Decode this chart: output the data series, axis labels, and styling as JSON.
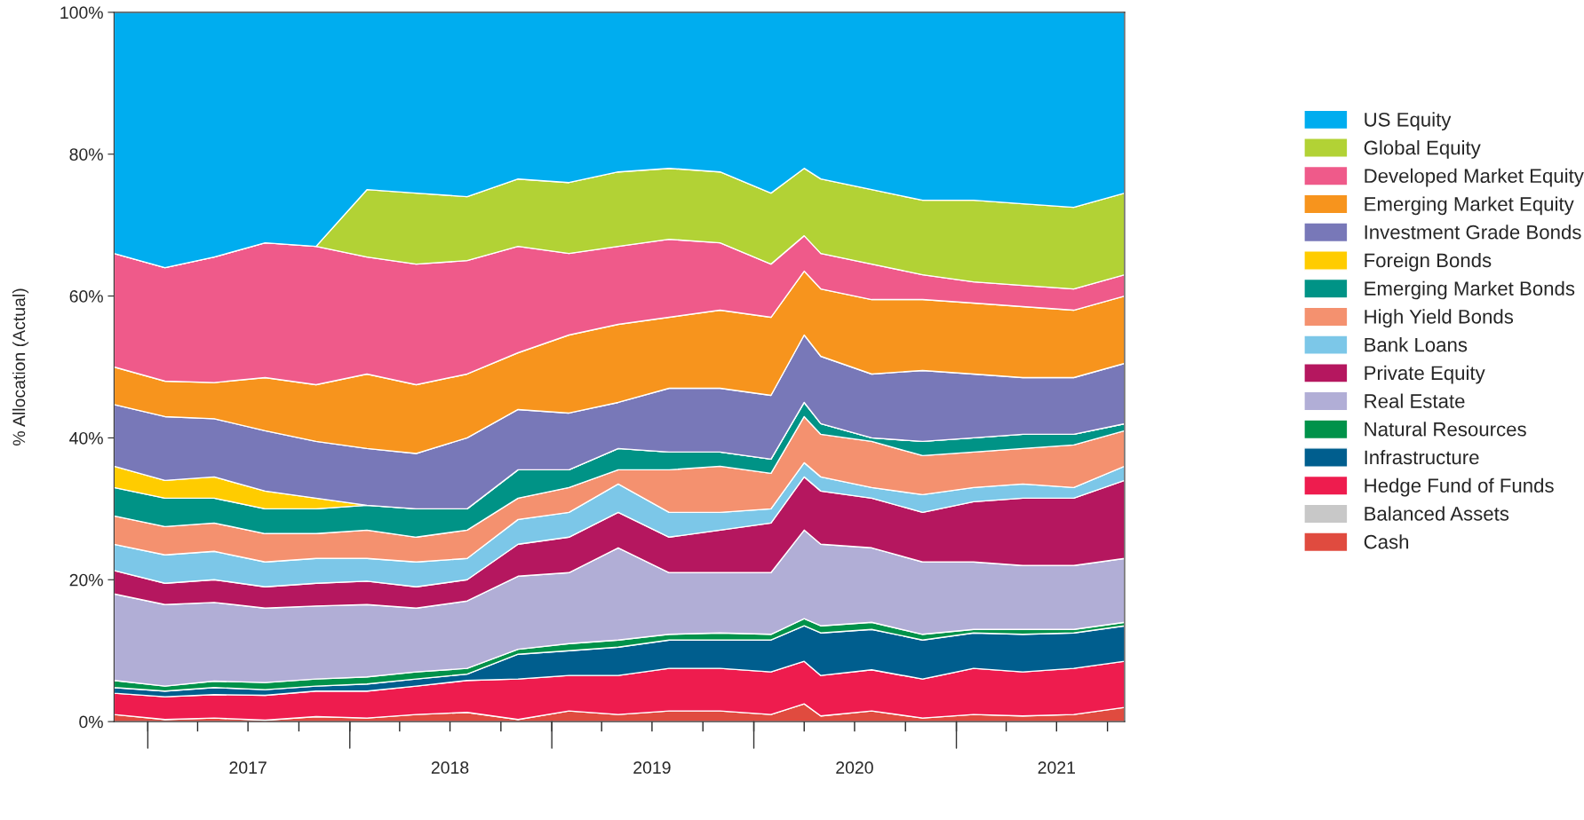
{
  "chart_data": {
    "type": "area",
    "stacked": true,
    "ylabel": "% Allocation (Actual)",
    "legend": "right",
    "x": [
      "2016-11-01",
      "2017-02-01",
      "2017-05-01",
      "2017-08-01",
      "2017-11-01",
      "2018-02-01",
      "2018-05-01",
      "2018-08-01",
      "2018-11-01",
      "2019-02-01",
      "2019-05-01",
      "2019-08-01",
      "2019-11-01",
      "2020-02-01",
      "2020-04-01",
      "2020-05-01",
      "2020-08-01",
      "2020-11-01",
      "2021-02-01",
      "2021-05-01",
      "2021-08-01",
      "2021-11-01"
    ],
    "xlim": [
      "2016-11-01",
      "2021-11-01"
    ],
    "xticks": [
      {
        "value": "2017-01-01",
        "label": null
      },
      {
        "value": "2017-04-01",
        "label": null
      },
      {
        "value": "2017-07-01",
        "label": "2017"
      },
      {
        "value": "2017-10-01",
        "label": null
      },
      {
        "value": "2018-01-01",
        "label": null
      },
      {
        "value": "2018-04-01",
        "label": null
      },
      {
        "value": "2018-07-01",
        "label": "2018"
      },
      {
        "value": "2018-10-01",
        "label": null
      },
      {
        "value": "2019-01-01",
        "label": null
      },
      {
        "value": "2019-04-01",
        "label": null
      },
      {
        "value": "2019-07-01",
        "label": "2019"
      },
      {
        "value": "2019-10-01",
        "label": null
      },
      {
        "value": "2020-01-01",
        "label": null
      },
      {
        "value": "2020-04-01",
        "label": null
      },
      {
        "value": "2020-07-01",
        "label": "2020"
      },
      {
        "value": "2020-10-01",
        "label": null
      },
      {
        "value": "2021-01-01",
        "label": null
      },
      {
        "value": "2021-04-01",
        "label": null
      },
      {
        "value": "2021-07-01",
        "label": "2021"
      },
      {
        "value": "2021-10-01",
        "label": null
      }
    ],
    "ylim": [
      0,
      100
    ],
    "yticks": [
      {
        "value": 0,
        "label": "0%"
      },
      {
        "value": 20,
        "label": "20%"
      },
      {
        "value": 40,
        "label": "40%"
      },
      {
        "value": 60,
        "label": "60%"
      },
      {
        "value": 80,
        "label": "80%"
      },
      {
        "value": 100,
        "label": "100%"
      }
    ],
    "series": [
      {
        "name": "Cash",
        "color": "#e04b3f",
        "values": [
          1,
          0.3,
          0.5,
          0.2,
          0.7,
          0.5,
          1,
          1.3,
          0.3,
          1.5,
          1,
          1.5,
          1.5,
          1,
          2.5,
          0.8,
          1.5,
          0.5,
          1,
          0.8,
          1,
          2
        ]
      },
      {
        "name": "Balanced Assets",
        "color": "#c8c8c8",
        "values": [
          null,
          null,
          null,
          null,
          null,
          null,
          null,
          null,
          null,
          null,
          null,
          null,
          null,
          null,
          null,
          null,
          null,
          null,
          null,
          null,
          null,
          null
        ]
      },
      {
        "name": "Hedge Fund of Funds",
        "color": "#ee1c4e",
        "values": [
          3,
          3.2,
          3.3,
          3.5,
          3.6,
          3.8,
          4,
          4.5,
          5.7,
          5,
          5.5,
          6,
          6,
          6,
          6,
          5.7,
          5.8,
          5.5,
          6.5,
          6.2,
          6.5,
          6.5
        ]
      },
      {
        "name": "Infrastructure",
        "color": "#005e8e",
        "values": [
          0.8,
          0.8,
          1,
          0.8,
          0.7,
          1,
          1,
          0.9,
          3.5,
          3.5,
          4,
          4,
          4,
          4.5,
          5,
          6,
          5.7,
          5.5,
          5,
          5.3,
          5,
          5
        ]
      },
      {
        "name": "Natural Resources",
        "color": "#00924a",
        "values": [
          1,
          0.7,
          0.9,
          1,
          1,
          1,
          1,
          0.8,
          0.7,
          1,
          1,
          0.8,
          1,
          0.8,
          1,
          1,
          1,
          0.8,
          0.5,
          0.7,
          0.5,
          0.5
        ]
      },
      {
        "name": "Real Estate",
        "color": "#b1aed6",
        "values": [
          12.2,
          11.5,
          11.1,
          10.5,
          10.3,
          10.2,
          9,
          9.5,
          10.3,
          10,
          13,
          8.7,
          8.5,
          8.7,
          12.5,
          11.5,
          10.5,
          10.2,
          9.5,
          9,
          9,
          9
        ]
      },
      {
        "name": "Private Equity",
        "color": "#b5175f",
        "values": [
          3.3,
          3,
          3.2,
          3,
          3.2,
          3.3,
          3,
          3,
          4.5,
          5,
          5,
          5,
          6,
          7,
          7.5,
          7.5,
          7,
          7,
          8.5,
          9.5,
          9.5,
          11
        ]
      },
      {
        "name": "Bank Loans",
        "color": "#7cc7e8",
        "values": [
          3.7,
          4,
          4,
          3.5,
          3.5,
          3.2,
          3.5,
          3,
          3.5,
          3.5,
          4,
          3.5,
          2.5,
          2,
          2,
          2,
          1.5,
          2.5,
          2,
          2,
          1.5,
          2
        ]
      },
      {
        "name": "High Yield Bonds",
        "color": "#f4916f",
        "values": [
          4,
          4,
          4,
          4,
          3.5,
          4,
          3.5,
          4,
          3,
          3.5,
          2,
          6,
          6.5,
          5,
          6.5,
          6,
          6.5,
          5.5,
          5,
          5,
          6,
          5
        ]
      },
      {
        "name": "Emerging Market Bonds",
        "color": "#009386",
        "values": [
          4,
          4,
          3.5,
          3.5,
          3.5,
          3.5,
          4,
          3,
          4,
          2.5,
          3,
          2.5,
          2,
          2,
          2,
          1.5,
          0.5,
          2,
          2,
          2,
          1.5,
          1
        ]
      },
      {
        "name": "Foreign Bonds",
        "color": "#ffcc00",
        "values": [
          3,
          2.5,
          3,
          2.5,
          1.5,
          0,
          0,
          0,
          0,
          0,
          0,
          0,
          0,
          0,
          0,
          0,
          0,
          0,
          0,
          0,
          0,
          0
        ]
      },
      {
        "name": "Investment Grade Bonds",
        "color": "#7878b8",
        "values": [
          8.7,
          9,
          8.2,
          8.5,
          8,
          8,
          7.8,
          10,
          8.5,
          8,
          6.5,
          9,
          9,
          9,
          9.5,
          9.5,
          9,
          10,
          9,
          8,
          8,
          8.5
        ]
      },
      {
        "name": "Emerging Market Equity",
        "color": "#f7941d",
        "values": [
          5.3,
          5,
          5.1,
          7.5,
          8,
          10.5,
          9.7,
          9,
          8,
          11,
          11,
          10,
          11,
          11,
          9,
          9.5,
          10.5,
          10,
          10,
          10,
          9.5,
          9.5
        ]
      },
      {
        "name": "Developed Market Equity",
        "color": "#ef5a8a",
        "values": [
          16,
          16,
          17.7,
          19,
          19.5,
          16.5,
          17,
          16,
          15,
          11.5,
          11,
          11,
          9.5,
          7.5,
          5,
          5,
          5,
          3.5,
          3,
          3,
          3,
          3
        ]
      },
      {
        "name": "Global Equity",
        "color": "#b2d235",
        "values": [
          0,
          0,
          0,
          0,
          0,
          9.5,
          10,
          9,
          9.5,
          10,
          10.5,
          10,
          10,
          10,
          9.5,
          10.5,
          10.5,
          10.5,
          11.5,
          11.5,
          11.5,
          11.5
        ]
      },
      {
        "name": "US Equity",
        "color": "#00adef",
        "values": [
          34,
          36,
          34.5,
          32.5,
          33,
          25,
          25.5,
          26,
          23.5,
          24,
          22.5,
          22,
          22.5,
          25.5,
          22,
          23.5,
          25,
          26.5,
          26.5,
          27,
          27.5,
          25.5
        ]
      }
    ]
  }
}
